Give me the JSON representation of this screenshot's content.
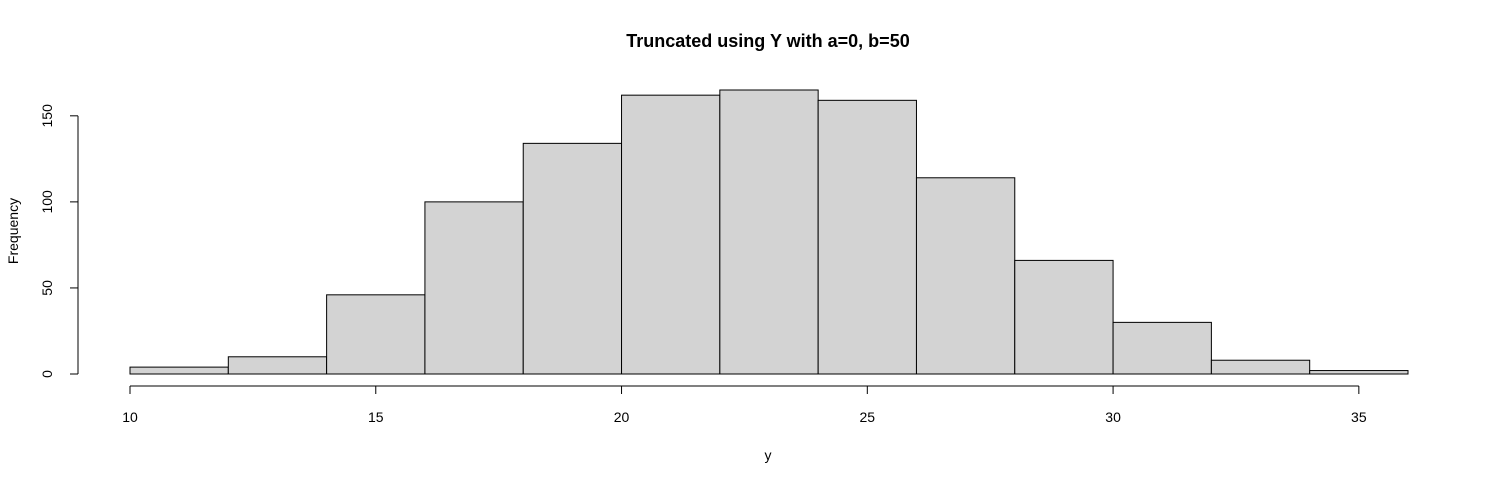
{
  "chart_data": {
    "type": "bar",
    "title": "Truncated using Y with a=0, b=50",
    "xlabel": "y",
    "ylabel": "Frequency",
    "bins": [
      {
        "x0": 10,
        "x1": 12,
        "count": 4
      },
      {
        "x0": 12,
        "x1": 14,
        "count": 10
      },
      {
        "x0": 14,
        "x1": 16,
        "count": 46
      },
      {
        "x0": 16,
        "x1": 18,
        "count": 100
      },
      {
        "x0": 18,
        "x1": 20,
        "count": 134
      },
      {
        "x0": 20,
        "x1": 22,
        "count": 162
      },
      {
        "x0": 22,
        "x1": 24,
        "count": 165
      },
      {
        "x0": 24,
        "x1": 26,
        "count": 159
      },
      {
        "x0": 26,
        "x1": 28,
        "count": 114
      },
      {
        "x0": 28,
        "x1": 30,
        "count": 66
      },
      {
        "x0": 30,
        "x1": 32,
        "count": 30
      },
      {
        "x0": 32,
        "x1": 34,
        "count": 8
      },
      {
        "x0": 34,
        "x1": 36,
        "count": 2
      }
    ],
    "xlim": [
      10,
      36
    ],
    "ylim": [
      0,
      165
    ],
    "xticks": [
      10,
      15,
      20,
      25,
      30,
      35
    ],
    "yticks": [
      0,
      50,
      100,
      150
    ],
    "bar_fill": "#d3d3d3",
    "bar_stroke": "#000000",
    "grid": false,
    "legend": "none"
  }
}
